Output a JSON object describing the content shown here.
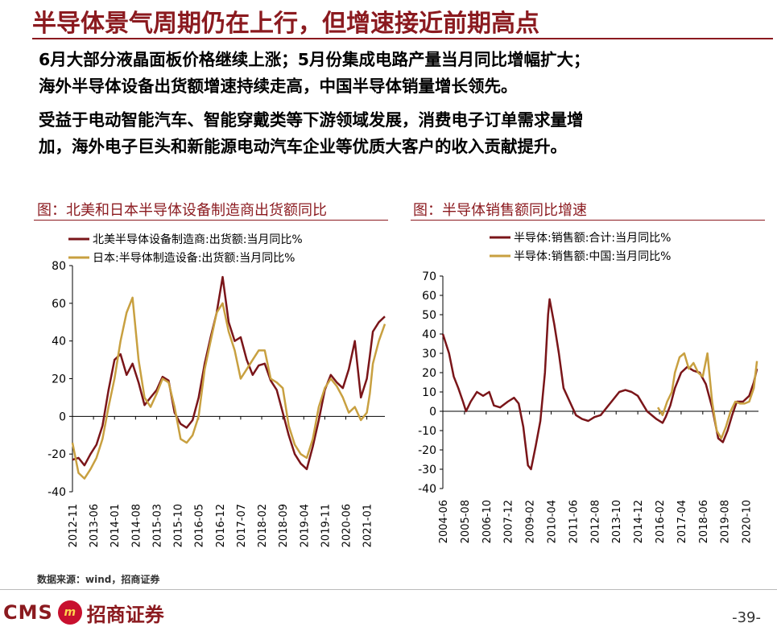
{
  "header": {
    "title": "半导体景气周期仍在上行，但增速接近前期高点"
  },
  "paragraphs": [
    [
      "6月大部分液晶面板价格继续上涨；5月份集成电路产量当月同比增幅扩大；",
      "海外半导体设备出货额增速持续走高，中国半导体销量增长领先。"
    ],
    [
      "受益于电动智能汽车、智能穿戴类等下游领域发展，消费电子订单需求量增",
      "加，海外电子巨头和新能源电动汽车企业等优质大客户的收入贡献提升。"
    ]
  ],
  "source": "数据来源：wind，招商证券",
  "footer": {
    "logo_text": "CMS",
    "logo_mark": "m",
    "logo_cn": "招商证券",
    "page": "-39-"
  },
  "colors": {
    "accent": "#8b1a1f",
    "series_dark": "#7a1519",
    "series_gold": "#c8a040"
  },
  "chart_data": [
    {
      "type": "line",
      "title": "图：北美和日本半导体设备制造商出货额同比",
      "ylim": [
        -40,
        80
      ],
      "yticks": [
        -40,
        -20,
        0,
        20,
        40,
        60,
        80
      ],
      "xlim": [
        "2012-11",
        "2021-07"
      ],
      "xticks": [
        "2012-11",
        "2013-06",
        "2014-01",
        "2014-08",
        "2015-03",
        "2015-10",
        "2016-05",
        "2016-12",
        "2017-07",
        "2018-02",
        "2018-09",
        "2019-04",
        "2019-11",
        "2020-06",
        "2021-01"
      ],
      "legend_position": "top-left",
      "series": [
        {
          "name": "北美半导体设备制造商:出货额:当月同比%",
          "color": "#7a1519",
          "points": [
            [
              "2012-11",
              -23
            ],
            [
              "2013-01",
              -22
            ],
            [
              "2013-03",
              -26
            ],
            [
              "2013-05",
              -20
            ],
            [
              "2013-07",
              -15
            ],
            [
              "2013-09",
              -5
            ],
            [
              "2013-11",
              14
            ],
            [
              "2014-01",
              30
            ],
            [
              "2014-03",
              33
            ],
            [
              "2014-05",
              22
            ],
            [
              "2014-07",
              28
            ],
            [
              "2014-09",
              18
            ],
            [
              "2014-11",
              6
            ],
            [
              "2015-01",
              10
            ],
            [
              "2015-03",
              14
            ],
            [
              "2015-05",
              21
            ],
            [
              "2015-07",
              19
            ],
            [
              "2015-09",
              2
            ],
            [
              "2015-11",
              -4
            ],
            [
              "2016-01",
              -6
            ],
            [
              "2016-03",
              -2
            ],
            [
              "2016-05",
              10
            ],
            [
              "2016-07",
              28
            ],
            [
              "2016-09",
              42
            ],
            [
              "2016-11",
              55
            ],
            [
              "2017-01",
              74
            ],
            [
              "2017-03",
              50
            ],
            [
              "2017-05",
              40
            ],
            [
              "2017-07",
              42
            ],
            [
              "2017-09",
              30
            ],
            [
              "2017-11",
              22
            ],
            [
              "2018-01",
              27
            ],
            [
              "2018-03",
              28
            ],
            [
              "2018-05",
              19
            ],
            [
              "2018-07",
              14
            ],
            [
              "2018-09",
              2
            ],
            [
              "2018-11",
              -10
            ],
            [
              "2019-01",
              -20
            ],
            [
              "2019-03",
              -25
            ],
            [
              "2019-05",
              -28
            ],
            [
              "2019-07",
              -16
            ],
            [
              "2019-09",
              -2
            ],
            [
              "2019-11",
              14
            ],
            [
              "2020-01",
              22
            ],
            [
              "2020-03",
              18
            ],
            [
              "2020-05",
              15
            ],
            [
              "2020-07",
              25
            ],
            [
              "2020-09",
              40
            ],
            [
              "2020-11",
              10
            ],
            [
              "2021-01",
              20
            ],
            [
              "2021-02",
              32
            ],
            [
              "2021-03",
              45
            ],
            [
              "2021-05",
              50
            ],
            [
              "2021-07",
              53
            ]
          ]
        },
        {
          "name": "日本:半导体制造设备:出货额:当月同比%",
          "color": "#c8a040",
          "points": [
            [
              "2012-11",
              -14
            ],
            [
              "2013-01",
              -30
            ],
            [
              "2013-03",
              -33
            ],
            [
              "2013-05",
              -28
            ],
            [
              "2013-07",
              -22
            ],
            [
              "2013-09",
              -12
            ],
            [
              "2013-11",
              5
            ],
            [
              "2014-01",
              20
            ],
            [
              "2014-03",
              40
            ],
            [
              "2014-05",
              55
            ],
            [
              "2014-07",
              63
            ],
            [
              "2014-09",
              30
            ],
            [
              "2014-11",
              10
            ],
            [
              "2015-01",
              5
            ],
            [
              "2015-03",
              12
            ],
            [
              "2015-05",
              20
            ],
            [
              "2015-07",
              18
            ],
            [
              "2015-09",
              5
            ],
            [
              "2015-11",
              -12
            ],
            [
              "2016-01",
              -14
            ],
            [
              "2016-03",
              -10
            ],
            [
              "2016-05",
              0
            ],
            [
              "2016-07",
              25
            ],
            [
              "2016-09",
              40
            ],
            [
              "2016-11",
              55
            ],
            [
              "2017-01",
              60
            ],
            [
              "2017-03",
              45
            ],
            [
              "2017-05",
              35
            ],
            [
              "2017-07",
              20
            ],
            [
              "2017-09",
              25
            ],
            [
              "2017-11",
              30
            ],
            [
              "2018-01",
              35
            ],
            [
              "2018-03",
              35
            ],
            [
              "2018-05",
              20
            ],
            [
              "2018-07",
              18
            ],
            [
              "2018-09",
              15
            ],
            [
              "2018-11",
              -5
            ],
            [
              "2019-01",
              -15
            ],
            [
              "2019-03",
              -20
            ],
            [
              "2019-05",
              -22
            ],
            [
              "2019-07",
              -12
            ],
            [
              "2019-09",
              5
            ],
            [
              "2019-11",
              15
            ],
            [
              "2020-01",
              20
            ],
            [
              "2020-03",
              16
            ],
            [
              "2020-05",
              10
            ],
            [
              "2020-07",
              2
            ],
            [
              "2020-09",
              5
            ],
            [
              "2020-11",
              -2
            ],
            [
              "2021-01",
              2
            ],
            [
              "2021-02",
              12
            ],
            [
              "2021-03",
              28
            ],
            [
              "2021-05",
              40
            ],
            [
              "2021-07",
              49
            ]
          ]
        }
      ]
    },
    {
      "type": "line",
      "title": "图：半导体销售额同比增速",
      "ylim": [
        -40,
        70
      ],
      "yticks": [
        -40,
        -30,
        -20,
        -10,
        0,
        10,
        20,
        30,
        40,
        50,
        60,
        70
      ],
      "xlim": [
        "2004-06",
        "2021-06"
      ],
      "xticks": [
        "2004-06",
        "2005-08",
        "2006-10",
        "2007-12",
        "2009-02",
        "2010-04",
        "2011-06",
        "2012-08",
        "2013-10",
        "2014-12",
        "2016-02",
        "2017-04",
        "2018-06",
        "2019-08",
        "2020-10"
      ],
      "legend_position": "top-left",
      "series": [
        {
          "name": "半导体:销售额:合计:当月同比%",
          "color": "#7a1519",
          "points": [
            [
              "2004-06",
              40
            ],
            [
              "2004-10",
              30
            ],
            [
              "2005-01",
              18
            ],
            [
              "2005-04",
              12
            ],
            [
              "2005-07",
              5
            ],
            [
              "2005-09",
              0
            ],
            [
              "2005-12",
              5
            ],
            [
              "2006-04",
              10
            ],
            [
              "2006-08",
              8
            ],
            [
              "2006-12",
              10
            ],
            [
              "2007-03",
              3
            ],
            [
              "2007-07",
              2
            ],
            [
              "2007-12",
              5
            ],
            [
              "2008-04",
              7
            ],
            [
              "2008-07",
              4
            ],
            [
              "2008-10",
              -8
            ],
            [
              "2009-01",
              -28
            ],
            [
              "2009-03",
              -30
            ],
            [
              "2009-06",
              -18
            ],
            [
              "2009-09",
              -5
            ],
            [
              "2009-12",
              20
            ],
            [
              "2010-02",
              50
            ],
            [
              "2010-03",
              58
            ],
            [
              "2010-06",
              45
            ],
            [
              "2010-09",
              30
            ],
            [
              "2010-12",
              12
            ],
            [
              "2011-04",
              5
            ],
            [
              "2011-08",
              -2
            ],
            [
              "2011-12",
              -4
            ],
            [
              "2012-04",
              -5
            ],
            [
              "2012-08",
              -3
            ],
            [
              "2012-12",
              -2
            ],
            [
              "2013-04",
              2
            ],
            [
              "2013-08",
              6
            ],
            [
              "2013-12",
              10
            ],
            [
              "2014-04",
              11
            ],
            [
              "2014-08",
              10
            ],
            [
              "2014-12",
              8
            ],
            [
              "2015-06",
              0
            ],
            [
              "2015-12",
              -4
            ],
            [
              "2016-04",
              -6
            ],
            [
              "2016-06",
              -3
            ],
            [
              "2016-09",
              3
            ],
            [
              "2016-12",
              12
            ],
            [
              "2017-04",
              20
            ],
            [
              "2017-08",
              23
            ],
            [
              "2017-12",
              21
            ],
            [
              "2018-04",
              20
            ],
            [
              "2018-08",
              14
            ],
            [
              "2018-12",
              2
            ],
            [
              "2019-04",
              -14
            ],
            [
              "2019-07",
              -16
            ],
            [
              "2019-10",
              -10
            ],
            [
              "2020-01",
              -2
            ],
            [
              "2020-04",
              5
            ],
            [
              "2020-08",
              5
            ],
            [
              "2020-12",
              8
            ],
            [
              "2021-03",
              15
            ],
            [
              "2021-05",
              22
            ]
          ]
        },
        {
          "name": "半导体:销售额:中国:当月同比%",
          "color": "#c8a040",
          "points": [
            [
              "2016-01",
              2
            ],
            [
              "2016-04",
              -2
            ],
            [
              "2016-07",
              5
            ],
            [
              "2016-10",
              10
            ],
            [
              "2016-12",
              20
            ],
            [
              "2017-03",
              28
            ],
            [
              "2017-06",
              30
            ],
            [
              "2017-09",
              22
            ],
            [
              "2017-12",
              25
            ],
            [
              "2018-03",
              20
            ],
            [
              "2018-06",
              18
            ],
            [
              "2018-09",
              30
            ],
            [
              "2018-12",
              5
            ],
            [
              "2019-03",
              -10
            ],
            [
              "2019-06",
              -14
            ],
            [
              "2019-09",
              -8
            ],
            [
              "2019-12",
              0
            ],
            [
              "2020-03",
              5
            ],
            [
              "2020-06",
              4
            ],
            [
              "2020-09",
              4
            ],
            [
              "2020-12",
              5
            ],
            [
              "2021-03",
              12
            ],
            [
              "2021-05",
              26
            ]
          ]
        }
      ]
    }
  ]
}
